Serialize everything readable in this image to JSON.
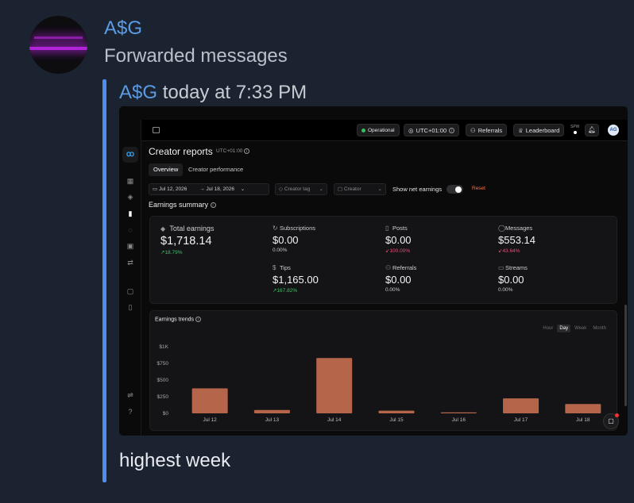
{
  "message": {
    "sender": "A$G",
    "subtitle": "Forwarded messages",
    "forwarded": {
      "sender": "A$G",
      "time": "today at 7:33 PM"
    },
    "caption": "highest week"
  },
  "app": {
    "status": "Operational",
    "timezone_btn": "UTC+01:00",
    "referrals_btn": "Referrals",
    "leaderboard_btn": "Leaderboard",
    "spw": "SPW",
    "user_initials": "AG",
    "page_title": "Creator reports",
    "page_tz": "UTC+01:00",
    "tabs": [
      "Overview",
      "Creator performance"
    ],
    "filters": {
      "date_from": "Jul 12, 2026",
      "date_to": "Jul 18, 2026",
      "creator_tag": "Creator tag",
      "creator": "Creator",
      "net_label": "Show net earnings",
      "reset": "Reset"
    },
    "summary_title": "Earnings summary",
    "metrics": [
      {
        "label": "Total earnings",
        "value": "$1,718.14",
        "change": "↗18.79%",
        "trend": "up",
        "icon": "wallet-icon"
      },
      {
        "label": "Subscriptions",
        "value": "$0.00",
        "change": "0.00%",
        "trend": "flat",
        "icon": "refresh-icon"
      },
      {
        "label": "Posts",
        "value": "$0.00",
        "change": "↙100.00%",
        "trend": "down",
        "icon": "file-icon"
      },
      {
        "label": "Messages",
        "value": "$553.14",
        "change": "↙43.64%",
        "trend": "down",
        "icon": "chat-icon"
      },
      {
        "label": "Tips",
        "value": "$1,165.00",
        "change": "↗167.82%",
        "trend": "up",
        "icon": "dollar-icon"
      },
      {
        "label": "Referrals",
        "value": "$0.00",
        "change": "0.00%",
        "trend": "flat",
        "icon": "user-plus-icon"
      },
      {
        "label": "Streams",
        "value": "$0.00",
        "change": "0.00%",
        "trend": "flat",
        "icon": "video-icon"
      }
    ],
    "trends_title": "Earnings trends",
    "granularity": [
      "Hour",
      "Day",
      "Week",
      "Month"
    ],
    "granularity_selected": "Day"
  },
  "chart_data": {
    "type": "bar",
    "categories": [
      "Jul 12",
      "Jul 13",
      "Jul 14",
      "Jul 15",
      "Jul 16",
      "Jul 17",
      "Jul 18"
    ],
    "values": [
      375,
      50,
      830,
      40,
      15,
      225,
      140
    ],
    "yticks": [
      "$0",
      "$250",
      "$500",
      "$750",
      "$1K"
    ],
    "ylim": [
      0,
      1000
    ],
    "bar_color": "#b5664a",
    "grid": false
  }
}
